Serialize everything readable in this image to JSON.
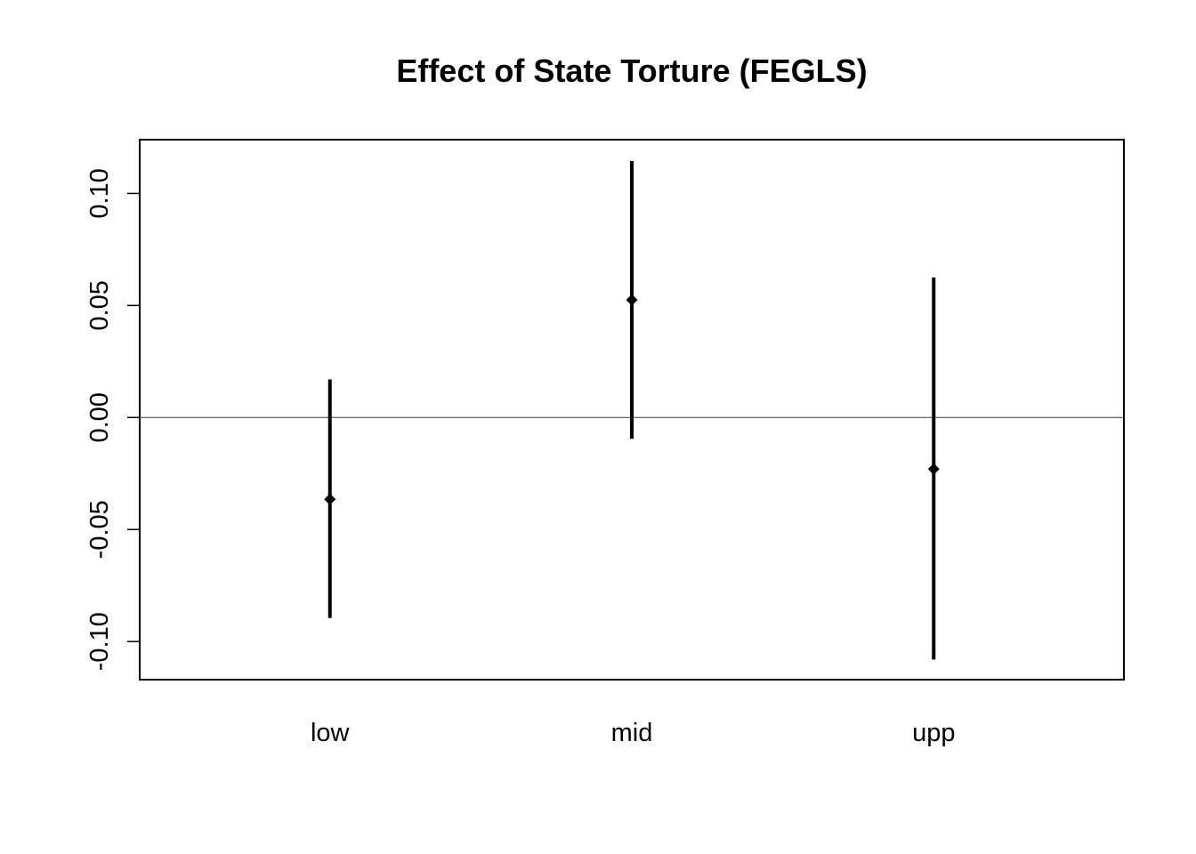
{
  "chart_data": {
    "type": "errorbar",
    "title": "Effect of State Torture (FEGLS)",
    "xlabel": "",
    "ylabel": "",
    "categories": [
      "low",
      "mid",
      "upp"
    ],
    "estimates": [
      -0.0365,
      0.0525,
      -0.023
    ],
    "lower": [
      -0.0895,
      -0.0095,
      -0.108
    ],
    "upper": [
      0.017,
      0.1145,
      0.0625
    ],
    "ylim": [
      -0.117,
      0.124
    ],
    "yticks": [
      -0.1,
      -0.05,
      0.0,
      0.05,
      0.1
    ],
    "ytick_labels": [
      "-0.10",
      "-0.05",
      "0.00",
      "0.05",
      "0.10"
    ],
    "reference_line": 0.0,
    "grid": false,
    "legend": "none",
    "colors": {
      "marks": "#000000",
      "reference_line": "#555555",
      "background": "#ffffff"
    }
  }
}
